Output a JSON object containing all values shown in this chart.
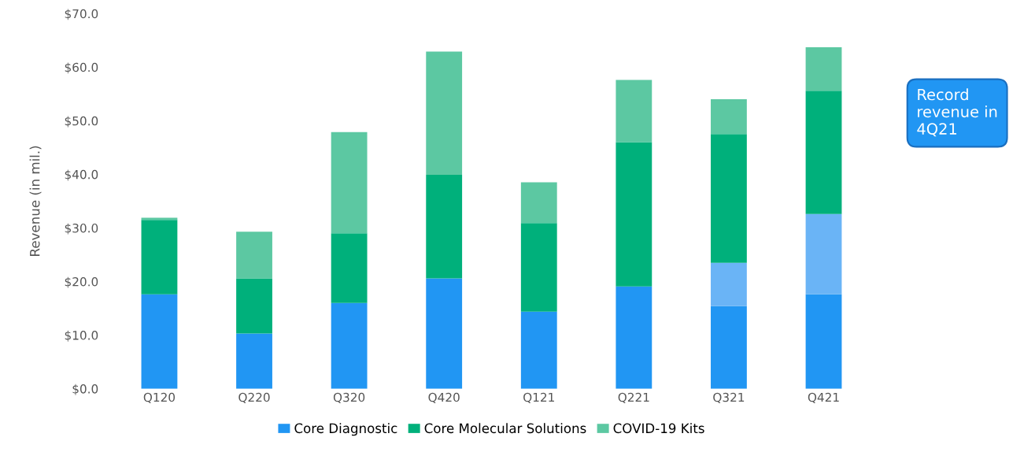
{
  "chart_data": {
    "type": "bar",
    "stacked": true,
    "ylabel": "Revenue (in mil.)",
    "categories": [
      "Q120",
      "Q220",
      "Q320",
      "Q420",
      "Q121",
      "Q221",
      "Q321",
      "Q421"
    ],
    "series": [
      {
        "name": "Core Diagnostic",
        "color": "#2196f3",
        "values": [
          17.6,
          10.3,
          16.0,
          20.6,
          14.4,
          19.1,
          15.4,
          17.6
        ]
      },
      {
        "color": "#6ab4f6",
        "values": [
          null,
          null,
          null,
          null,
          null,
          null,
          8.1,
          15.0
        ]
      },
      {
        "name": "Core Molecular Solutions",
        "color": "#00b07b",
        "values": [
          13.9,
          10.3,
          13.0,
          19.3,
          16.5,
          26.9,
          24.0,
          23.0
        ]
      },
      {
        "name": "COVID-19 Kits",
        "color": "#5cc8a2",
        "values": [
          0.4,
          8.7,
          18.9,
          23.0,
          7.6,
          11.6,
          6.5,
          8.1
        ]
      }
    ],
    "ylim": [
      0,
      70
    ],
    "yticks": [
      {
        "value": 0,
        "label": "$0.0"
      },
      {
        "value": 10,
        "label": "$10.0"
      },
      {
        "value": 20,
        "label": "$20.0"
      },
      {
        "value": 30,
        "label": "$30.0"
      },
      {
        "value": 40,
        "label": "$40.0"
      },
      {
        "value": 50,
        "label": "$50.0"
      },
      {
        "value": 60,
        "label": "$60.0"
      },
      {
        "value": 70,
        "label": "$70.0"
      }
    ],
    "grid": false,
    "legend": "bottom",
    "annotations": [
      "Record revenue in 4Q21"
    ]
  }
}
